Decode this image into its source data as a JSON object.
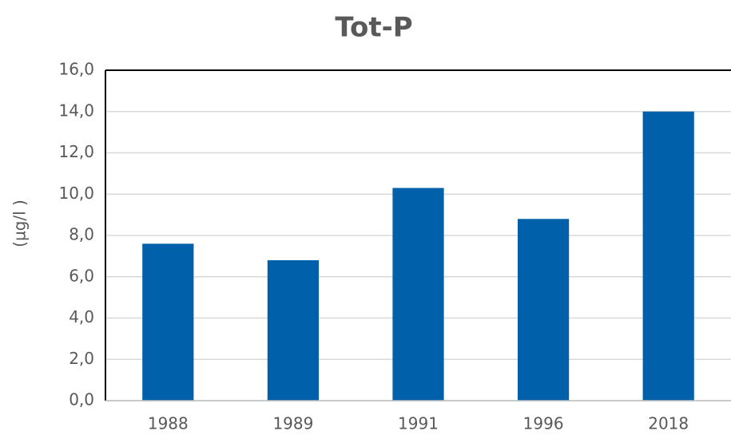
{
  "chart_data": {
    "type": "bar",
    "title": "Tot-P",
    "ylabel": "(µg/l )",
    "categories": [
      "1988",
      "1989",
      "1991",
      "1996",
      "2018"
    ],
    "values": [
      7.6,
      6.8,
      10.3,
      8.8,
      14.0
    ],
    "color": "#0060aa",
    "ylim": [
      0,
      16
    ],
    "yticks": [
      {
        "value": 0,
        "label": "0,0"
      },
      {
        "value": 2,
        "label": "2,0"
      },
      {
        "value": 4,
        "label": "4,0"
      },
      {
        "value": 6,
        "label": "6,0"
      },
      {
        "value": 8,
        "label": "8,0"
      },
      {
        "value": 10,
        "label": "10,0"
      },
      {
        "value": 12,
        "label": "12,0"
      },
      {
        "value": 14,
        "label": "14,0"
      },
      {
        "value": 16,
        "label": "16,0"
      }
    ],
    "grid": true
  }
}
